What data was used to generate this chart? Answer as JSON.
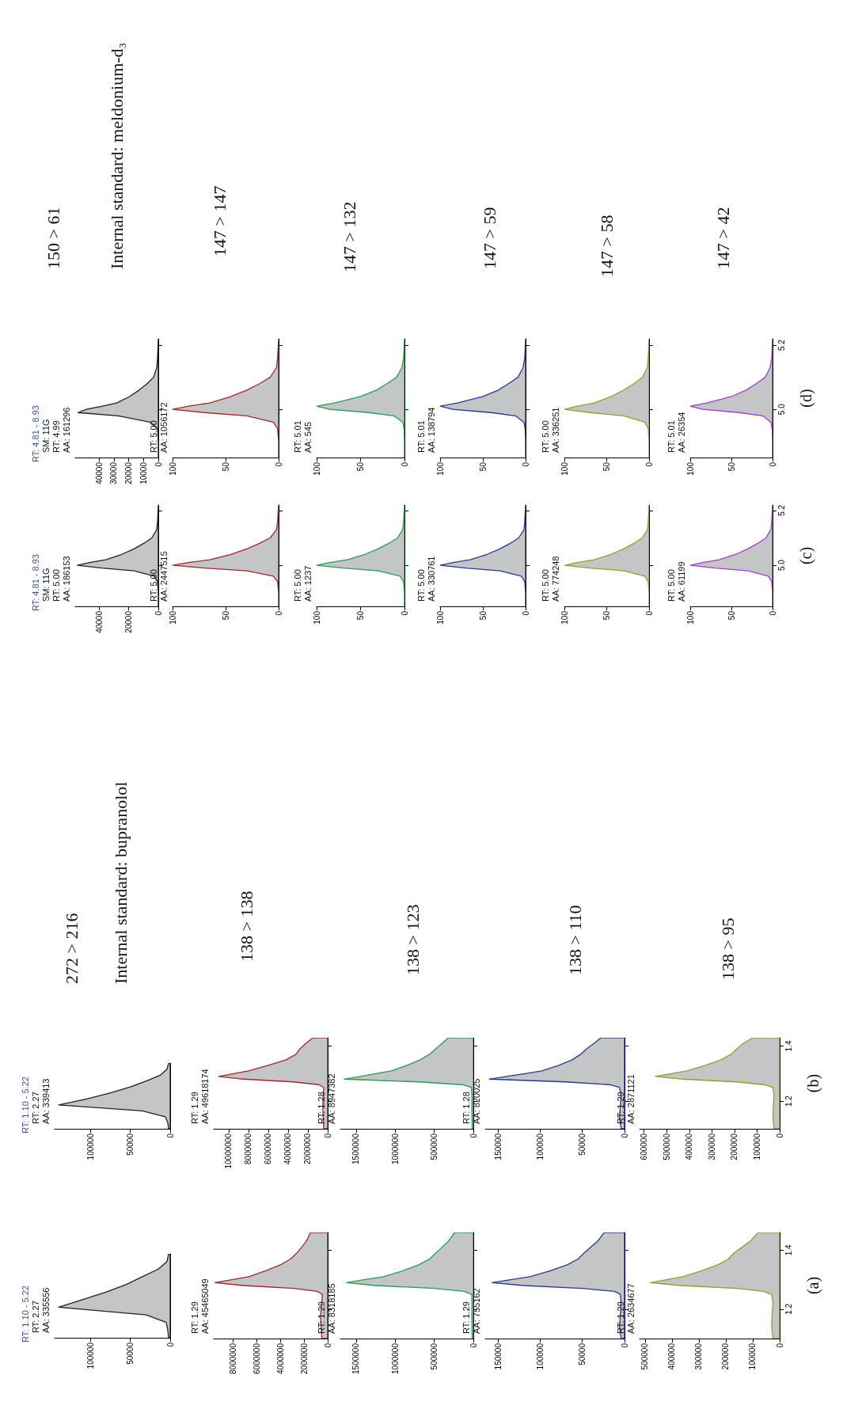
{
  "chart_data": [
    {
      "type": "area",
      "orientation": "horizontal",
      "subtitle": "RT: 1.10 - 5.22",
      "annotations": [
        "RT: 2.27",
        "AA: 335556"
      ],
      "categories": [
        null,
        null,
        null,
        null,
        null,
        null,
        null,
        null,
        null,
        null,
        null,
        null
      ],
      "color": "#222222",
      "values": [
        2000,
        4000,
        15000,
        35000,
        55000,
        80000,
        110000,
        140000,
        30000,
        5000,
        3000,
        2000
      ],
      "xlim": [
        145000,
        0
      ],
      "xticks": [
        0,
        50000,
        100000
      ],
      "tick_labels": "x"
    },
    {
      "type": "area",
      "orientation": "horizontal",
      "annotations": [
        "RT: 1.29",
        "AA: 45465049"
      ],
      "x": [
        1.1,
        1.14,
        1.18,
        1.22,
        1.25,
        1.26,
        1.27,
        1.28,
        1.29,
        1.3,
        1.31,
        1.33,
        1.35,
        1.37,
        1.39,
        1.41,
        1.43,
        1.46
      ],
      "color": "#a02828",
      "values": [
        500000,
        550000,
        600000,
        500000,
        450000,
        900000,
        2850000,
        7125000,
        9500000,
        8075000,
        6650000,
        5225000,
        3990000,
        3135000,
        2600000,
        2200000,
        1800000,
        1450000
      ],
      "ylim": [
        1.1,
        1.46
      ],
      "yticks": [
        {
          "value": 1.2,
          "label": null
        },
        {
          "value": 1.4,
          "label": null
        }
      ],
      "xlim": [
        9600000,
        0
      ],
      "xticks": [
        0,
        2000000,
        4000000,
        6000000,
        8000000
      ],
      "tick_labels": "x"
    },
    {
      "type": "area",
      "orientation": "horizontal",
      "annotations": [
        "RT: 1.29",
        "AA: 8318185"
      ],
      "x": [
        1.1,
        1.14,
        1.18,
        1.22,
        1.25,
        1.26,
        1.27,
        1.28,
        1.29,
        1.3,
        1.31,
        1.33,
        1.35,
        1.37,
        1.39,
        1.41,
        1.43,
        1.46
      ],
      "color": "#2a9a55",
      "values": [
        15000,
        18000,
        20000,
        18000,
        20000,
        120000,
        500000,
        1250000,
        1620000,
        1400000,
        1150000,
        900000,
        700000,
        560000,
        480000,
        400000,
        320000,
        240000
      ],
      "ylim": [
        1.1,
        1.46
      ],
      "yticks": [
        {
          "value": 1.2,
          "label": null
        },
        {
          "value": 1.4,
          "label": null
        }
      ],
      "xlim": [
        1700000,
        0
      ],
      "xticks": [
        0,
        500000,
        1000000,
        1500000
      ],
      "tick_labels": "x"
    },
    {
      "type": "area",
      "orientation": "horizontal",
      "annotations": [
        "RT: 1.29",
        "AA: 755162"
      ],
      "x": [
        1.1,
        1.14,
        1.18,
        1.22,
        1.25,
        1.26,
        1.27,
        1.28,
        1.29,
        1.3,
        1.31,
        1.33,
        1.35,
        1.37,
        1.39,
        1.41,
        1.43,
        1.46
      ],
      "color": "#2a3a8a",
      "values": [
        4000,
        6000,
        5000,
        4000,
        5000,
        12000,
        50000,
        120000,
        157000,
        135000,
        112000,
        88000,
        68000,
        55000,
        48000,
        40000,
        32000,
        24000
      ],
      "ylim": [
        1.1,
        1.46
      ],
      "yticks": [
        {
          "value": 1.2,
          "label": null
        },
        {
          "value": 1.4,
          "label": null
        }
      ],
      "xlim": [
        165000,
        0
      ],
      "xticks": [
        0,
        50000,
        100000,
        150000
      ],
      "tick_labels": "x"
    },
    {
      "type": "area",
      "orientation": "horizontal",
      "ylabel": "(a)",
      "annotations": [
        "RT: 1.29",
        "AA: 2634677"
      ],
      "x": [
        1.1,
        1.14,
        1.18,
        1.22,
        1.25,
        1.26,
        1.27,
        1.28,
        1.29,
        1.3,
        1.31,
        1.33,
        1.35,
        1.37,
        1.39,
        1.41,
        1.43,
        1.46
      ],
      "color": "#9a9a30",
      "values": [
        25000,
        30000,
        28000,
        25000,
        30000,
        60000,
        160000,
        370000,
        480000,
        420000,
        360000,
        290000,
        230000,
        190000,
        170000,
        140000,
        110000,
        80000
      ],
      "ylim": [
        1.1,
        1.46
      ],
      "yticks": [
        1.2,
        1.4
      ],
      "xlim": [
        520000,
        0
      ],
      "xticks": [
        0,
        100000,
        200000,
        300000,
        400000,
        500000
      ]
    },
    {
      "type": "area",
      "orientation": "horizontal",
      "subtitle": "RT: 1.10 - 5.22",
      "annotations": [
        "RT: 2.27",
        "AA: 339413"
      ],
      "categories": [
        null,
        null,
        null,
        null,
        null,
        null,
        null,
        null,
        null,
        null,
        null,
        null
      ],
      "color": "#222222",
      "values": [
        2000,
        4000,
        12000,
        30000,
        50000,
        75000,
        105000,
        140000,
        35000,
        6000,
        3000,
        2000
      ],
      "xlim": [
        145000,
        0
      ],
      "xticks": [
        0,
        50000,
        100000
      ],
      "tick_labels": "x"
    },
    {
      "type": "area",
      "orientation": "horizontal",
      "annotations": [
        "RT: 1.29",
        "AA: 49618174"
      ],
      "x": [
        1.1,
        1.14,
        1.18,
        1.22,
        1.25,
        1.26,
        1.27,
        1.28,
        1.29,
        1.3,
        1.31,
        1.33,
        1.35,
        1.37,
        1.39,
        1.41,
        1.43
      ],
      "color": "#a02828",
      "values": [
        400000,
        450000,
        500000,
        450000,
        400000,
        900000,
        3500000,
        8500000,
        11000000,
        9500000,
        8000000,
        6000000,
        4200000,
        3200000,
        2800000,
        2200000,
        1500000
      ],
      "ylim": [
        1.1,
        1.43
      ],
      "yticks": [
        {
          "value": 1.2,
          "label": null
        },
        {
          "value": 1.4,
          "label": null
        }
      ],
      "xlim": [
        11500000,
        0
      ],
      "xticks": [
        0,
        2000000,
        4000000,
        6000000,
        8000000,
        10000000
      ],
      "tick_labels": "x"
    },
    {
      "type": "area",
      "orientation": "horizontal",
      "annotations": [
        "RT: 1.28",
        "AA: 8947382"
      ],
      "x": [
        1.1,
        1.14,
        1.18,
        1.22,
        1.25,
        1.26,
        1.27,
        1.28,
        1.29,
        1.3,
        1.31,
        1.33,
        1.35,
        1.37,
        1.39,
        1.41,
        1.43
      ],
      "color": "#2a9a55",
      "values": [
        15000,
        18000,
        20000,
        18000,
        25000,
        150000,
        700000,
        1650000,
        1450000,
        1250000,
        1050000,
        850000,
        680000,
        560000,
        480000,
        400000,
        320000
      ],
      "ylim": [
        1.1,
        1.43
      ],
      "yticks": [
        {
          "value": 1.2,
          "label": null
        },
        {
          "value": 1.4,
          "label": null
        }
      ],
      "xlim": [
        1700000,
        0
      ],
      "xticks": [
        0,
        500000,
        1000000,
        1500000
      ],
      "tick_labels": "x"
    },
    {
      "type": "area",
      "orientation": "horizontal",
      "annotations": [
        "RT: 1.28",
        "AA: 820025"
      ],
      "x": [
        1.1,
        1.14,
        1.18,
        1.22,
        1.25,
        1.26,
        1.27,
        1.28,
        1.29,
        1.3,
        1.31,
        1.33,
        1.35,
        1.37,
        1.39,
        1.41,
        1.43
      ],
      "color": "#2a3a8a",
      "values": [
        4000,
        6000,
        5000,
        4000,
        6000,
        18000,
        70000,
        160000,
        140000,
        118000,
        98000,
        78000,
        62000,
        52000,
        45000,
        36000,
        28000
      ],
      "ylim": [
        1.1,
        1.43
      ],
      "yticks": [
        {
          "value": 1.2,
          "label": null
        },
        {
          "value": 1.4,
          "label": null
        }
      ],
      "xlim": [
        165000,
        0
      ],
      "xticks": [
        0,
        50000,
        100000,
        150000
      ],
      "tick_labels": "x"
    },
    {
      "type": "area",
      "orientation": "horizontal",
      "ylabel": "(b)",
      "annotations": [
        "RT: 1.29",
        "AA: 2871121"
      ],
      "x": [
        1.1,
        1.14,
        1.18,
        1.22,
        1.25,
        1.26,
        1.27,
        1.28,
        1.29,
        1.3,
        1.31,
        1.33,
        1.35,
        1.37,
        1.39,
        1.41,
        1.43
      ],
      "color": "#9a9a30",
      "values": [
        25000,
        30000,
        28000,
        25000,
        30000,
        70000,
        190000,
        430000,
        550000,
        480000,
        410000,
        330000,
        260000,
        215000,
        190000,
        160000,
        120000
      ],
      "ylim": [
        1.1,
        1.43
      ],
      "yticks": [
        1.2,
        1.4
      ],
      "xlim": [
        620000,
        0
      ],
      "xticks": [
        0,
        100000,
        200000,
        300000,
        400000,
        500000,
        600000
      ]
    },
    {
      "type": "other",
      "annotations": [
        "272 > 216",
        "Internal standard: bupranolol",
        "138 > 138",
        "138 > 123",
        "138 > 110",
        "138 > 95"
      ]
    },
    {
      "type": "area",
      "orientation": "horizontal",
      "subtitle": "RT: 4.81 - 8.93",
      "annotations": [
        "SM: 11G",
        "RT: 5.00",
        "AA: 186153"
      ],
      "x": [
        4.85,
        4.9,
        4.94,
        4.96,
        4.98,
        4.99,
        5.0,
        5.01,
        5.02,
        5.04,
        5.06,
        5.08,
        5.1,
        5.13,
        5.16,
        5.22
      ],
      "color": "#222222",
      "values": [
        0,
        0,
        545,
        2725,
        16350,
        38150,
        54500,
        46325,
        35425,
        24525,
        16350,
        9810,
        4360,
        1090,
        545,
        0
      ],
      "ylim": [
        4.85,
        5.22
      ],
      "yticks": [
        {
          "value": 5,
          "label": null
        },
        {
          "value": 5.2,
          "label": null
        }
      ],
      "xlim": [
        56000,
        0
      ],
      "xticks": [
        0,
        20000,
        40000
      ],
      "tick_labels": "x"
    },
    {
      "type": "area",
      "orientation": "horizontal",
      "annotations": [
        "RT: 5.00",
        "AA: 2447515"
      ],
      "x": [
        4.85,
        4.9,
        4.94,
        4.96,
        4.98,
        4.99,
        5.0,
        5.01,
        5.02,
        5.04,
        5.06,
        5.08,
        5.1,
        5.13,
        5.16,
        5.22
      ],
      "color": "#a02828",
      "values": [
        0,
        0,
        1,
        5,
        30,
        70,
        100,
        85,
        65,
        45,
        30,
        18,
        8,
        2,
        1,
        0
      ],
      "ylim": [
        4.85,
        5.22
      ],
      "yticks": [
        {
          "value": 5,
          "label": null
        },
        {
          "value": 5.2,
          "label": null
        }
      ],
      "xlim": [
        100,
        0
      ],
      "xticks": [
        0,
        50,
        100
      ],
      "tick_labels": "x"
    },
    {
      "type": "area",
      "orientation": "horizontal",
      "annotations": [
        "RT: 5.00",
        "AA: 1237"
      ],
      "x": [
        4.85,
        4.9,
        4.94,
        4.96,
        4.98,
        4.99,
        5.0,
        5.01,
        5.02,
        5.04,
        5.06,
        5.08,
        5.1,
        5.13,
        5.16,
        5.22
      ],
      "color": "#2a9a55",
      "values": [
        0,
        0,
        1,
        5,
        30,
        70,
        100,
        85,
        65,
        45,
        30,
        18,
        8,
        2,
        1,
        0
      ],
      "ylim": [
        4.85,
        5.22
      ],
      "yticks": [
        {
          "value": 5,
          "label": null
        },
        {
          "value": 5.2,
          "label": null
        }
      ],
      "xlim": [
        100,
        0
      ],
      "xticks": [
        0,
        50,
        100
      ],
      "tick_labels": "x"
    },
    {
      "type": "area",
      "orientation": "horizontal",
      "annotations": [
        "RT: 5.00",
        "AA: 330761"
      ],
      "x": [
        4.85,
        4.9,
        4.94,
        4.96,
        4.98,
        4.99,
        5.0,
        5.01,
        5.02,
        5.04,
        5.06,
        5.08,
        5.1,
        5.13,
        5.16,
        5.22
      ],
      "color": "#2a3a8a",
      "values": [
        0,
        0,
        1,
        5,
        30,
        70,
        100,
        85,
        65,
        45,
        30,
        18,
        8,
        2,
        1,
        0
      ],
      "ylim": [
        4.85,
        5.22
      ],
      "yticks": [
        {
          "value": 5,
          "label": null
        },
        {
          "value": 5.2,
          "label": null
        }
      ],
      "xlim": [
        100,
        0
      ],
      "xticks": [
        0,
        50,
        100
      ],
      "tick_labels": "x"
    },
    {
      "type": "area",
      "orientation": "horizontal",
      "annotations": [
        "RT: 5.00",
        "AA: 774248"
      ],
      "x": [
        4.85,
        4.9,
        4.94,
        4.96,
        4.98,
        4.99,
        5.0,
        5.01,
        5.02,
        5.04,
        5.06,
        5.08,
        5.1,
        5.13,
        5.16,
        5.22
      ],
      "color": "#9a9a30",
      "values": [
        0,
        0,
        1,
        5,
        30,
        70,
        100,
        85,
        65,
        45,
        30,
        18,
        8,
        2,
        1,
        0
      ],
      "ylim": [
        4.85,
        5.22
      ],
      "yticks": [
        {
          "value": 5,
          "label": null
        },
        {
          "value": 5.2,
          "label": null
        }
      ],
      "xlim": [
        100,
        0
      ],
      "xticks": [
        0,
        50,
        100
      ],
      "tick_labels": "x"
    },
    {
      "type": "area",
      "orientation": "horizontal",
      "ylabel": "(c)",
      "annotations": [
        "RT: 5.00",
        "AA: 61199"
      ],
      "x": [
        4.85,
        4.9,
        4.94,
        4.96,
        4.98,
        4.99,
        5.0,
        5.01,
        5.02,
        5.04,
        5.06,
        5.08,
        5.1,
        5.13,
        5.16,
        5.22
      ],
      "color": "#a040c0",
      "values": [
        0,
        0,
        1,
        5,
        30,
        70,
        100,
        85,
        65,
        45,
        30,
        18,
        8,
        2,
        1,
        0
      ],
      "ylim": [
        4.85,
        5.22
      ],
      "yticks": [
        {
          "value": 5,
          "label": "5.0"
        },
        5.2
      ],
      "xlim": [
        100,
        0
      ],
      "xticks": [
        0,
        50,
        100
      ]
    },
    {
      "type": "area",
      "orientation": "horizontal",
      "subtitle": "RT: 4.81 - 8.93",
      "annotations": [
        "SM: 11G",
        "RT: 4.99",
        "AA: 161296"
      ],
      "x": [
        4.85,
        4.9,
        4.94,
        4.96,
        4.98,
        4.99,
        5.0,
        5.01,
        5.02,
        5.04,
        5.06,
        5.08,
        5.1,
        5.13,
        5.16,
        5.22
      ],
      "color": "#222222",
      "values": [
        0,
        0,
        540,
        5400,
        27000,
        54000,
        48600,
        37800,
        28080,
        19440,
        12960,
        7560,
        3240,
        1080,
        540,
        0
      ],
      "ylim": [
        4.85,
        5.22
      ],
      "yticks": [
        {
          "value": 5,
          "label": null
        },
        {
          "value": 5.2,
          "label": null
        }
      ],
      "xlim": [
        56000,
        0
      ],
      "xticks": [
        0,
        10000,
        20000,
        30000,
        40000
      ],
      "tick_labels": "x"
    },
    {
      "type": "area",
      "orientation": "horizontal",
      "annotations": [
        "RT: 5.00",
        "AA: 1056172"
      ],
      "x": [
        4.85,
        4.9,
        4.94,
        4.96,
        4.98,
        4.99,
        5.0,
        5.01,
        5.02,
        5.04,
        5.06,
        5.08,
        5.1,
        5.13,
        5.16,
        5.22
      ],
      "color": "#a02828",
      "values": [
        0,
        0,
        1,
        5,
        30,
        70,
        100,
        85,
        65,
        45,
        30,
        18,
        8,
        2,
        1,
        0
      ],
      "ylim": [
        4.85,
        5.22
      ],
      "yticks": [
        {
          "value": 5,
          "label": null
        },
        {
          "value": 5.2,
          "label": null
        }
      ],
      "xlim": [
        100,
        0
      ],
      "xticks": [
        0,
        50,
        100
      ],
      "tick_labels": "x"
    },
    {
      "type": "area",
      "orientation": "horizontal",
      "annotations": [
        "RT: 5.01",
        "AA: 545"
      ],
      "x": [
        4.85,
        4.9,
        4.94,
        4.96,
        4.98,
        4.99,
        5.0,
        5.01,
        5.02,
        5.04,
        5.06,
        5.08,
        5.1,
        5.13,
        5.16,
        5.22
      ],
      "color": "#2a9a55",
      "values": [
        0,
        0,
        0.5,
        2,
        12,
        40,
        85,
        100,
        80,
        50,
        32,
        20,
        9,
        3,
        1,
        0
      ],
      "ylim": [
        4.85,
        5.22
      ],
      "yticks": [
        {
          "value": 5,
          "label": null
        },
        {
          "value": 5.2,
          "label": null
        }
      ],
      "xlim": [
        100,
        0
      ],
      "xticks": [
        0,
        50,
        100
      ],
      "tick_labels": "x"
    },
    {
      "type": "area",
      "orientation": "horizontal",
      "annotations": [
        "RT: 5.01",
        "AA: 138794"
      ],
      "x": [
        4.85,
        4.9,
        4.94,
        4.96,
        4.98,
        4.99,
        5.0,
        5.01,
        5.02,
        5.04,
        5.06,
        5.08,
        5.1,
        5.13,
        5.16,
        5.22
      ],
      "color": "#2a3a8a",
      "values": [
        0,
        0,
        0.5,
        2,
        12,
        40,
        85,
        100,
        80,
        50,
        32,
        20,
        9,
        3,
        1,
        0
      ],
      "ylim": [
        4.85,
        5.22
      ],
      "yticks": [
        {
          "value": 5,
          "label": null
        },
        {
          "value": 5.2,
          "label": null
        }
      ],
      "xlim": [
        100,
        0
      ],
      "xticks": [
        0,
        50,
        100
      ],
      "tick_labels": "x"
    },
    {
      "type": "area",
      "orientation": "horizontal",
      "annotations": [
        "RT: 5.00",
        "AA: 336251"
      ],
      "x": [
        4.85,
        4.9,
        4.94,
        4.96,
        4.98,
        4.99,
        5.0,
        5.01,
        5.02,
        5.04,
        5.06,
        5.08,
        5.1,
        5.13,
        5.16,
        5.22
      ],
      "color": "#9a9a30",
      "values": [
        0,
        0,
        1,
        5,
        30,
        70,
        100,
        85,
        65,
        45,
        30,
        18,
        8,
        2,
        1,
        0
      ],
      "ylim": [
        4.85,
        5.22
      ],
      "yticks": [
        {
          "value": 5,
          "label": null
        },
        {
          "value": 5.2,
          "label": null
        }
      ],
      "xlim": [
        100,
        0
      ],
      "xticks": [
        0,
        50,
        100
      ],
      "tick_labels": "x"
    },
    {
      "type": "area",
      "orientation": "horizontal",
      "ylabel": "(d)",
      "annotations": [
        "RT: 5.01",
        "AA: 26354"
      ],
      "x": [
        4.85,
        4.9,
        4.94,
        4.96,
        4.98,
        4.99,
        5.0,
        5.01,
        5.02,
        5.04,
        5.06,
        5.08,
        5.1,
        5.13,
        5.16,
        5.22
      ],
      "color": "#a040c0",
      "values": [
        0,
        0,
        0.5,
        2,
        12,
        40,
        85,
        100,
        80,
        50,
        32,
        20,
        9,
        3,
        1,
        0
      ],
      "ylim": [
        4.85,
        5.22
      ],
      "yticks": [
        {
          "value": 5,
          "label": "5.0"
        },
        5.2
      ],
      "xlim": [
        100,
        0
      ],
      "xticks": [
        0,
        50,
        100
      ]
    },
    {
      "type": "other",
      "annotations": [
        "150 > 61",
        "Internal standard: meldonium-d₃",
        "147 > 147",
        "147 > 132",
        "147 > 59",
        "147 > 58",
        "147 > 42"
      ]
    }
  ]
}
